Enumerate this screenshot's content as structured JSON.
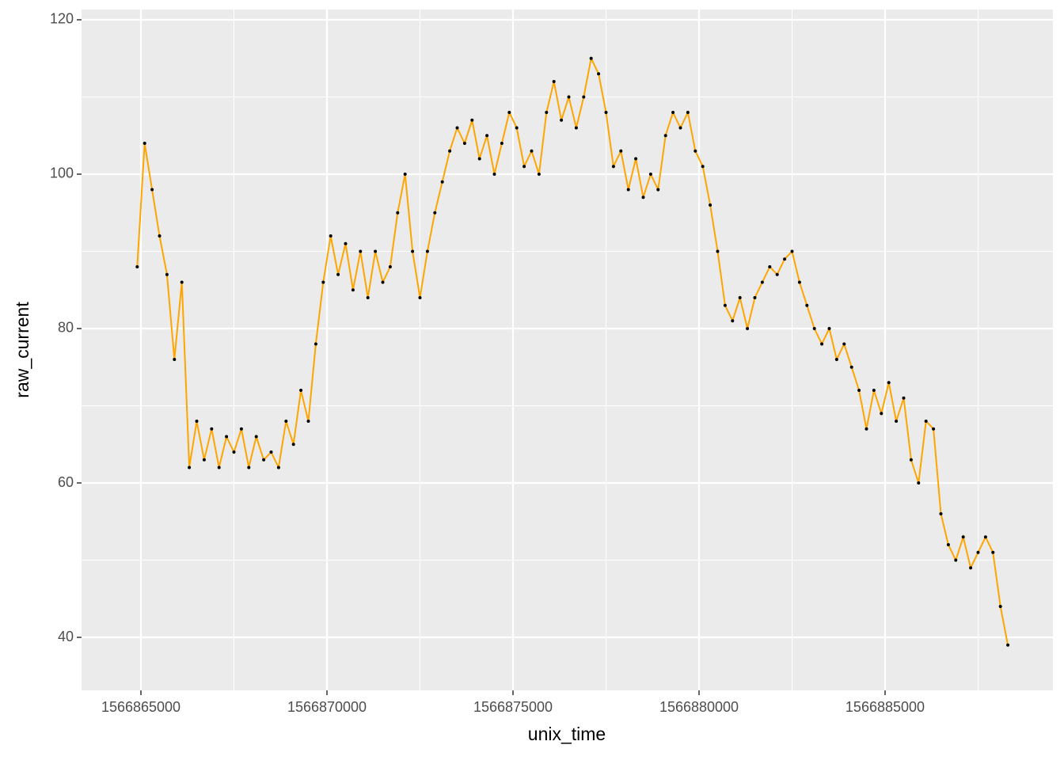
{
  "chart_data": {
    "type": "line",
    "x_label": "unix_time",
    "y_label": "raw_current",
    "x": [
      1566864900,
      1566865100,
      1566865300,
      1566865500,
      1566865700,
      1566865900,
      1566866100,
      1566866300,
      1566866500,
      1566866700,
      1566866900,
      1566867100,
      1566867300,
      1566867500,
      1566867700,
      1566867900,
      1566868100,
      1566868300,
      1566868500,
      1566868700,
      1566868900,
      1566869100,
      1566869300,
      1566869500,
      1566869700,
      1566869900,
      1566870100,
      1566870300,
      1566870500,
      1566870700,
      1566870900,
      1566871100,
      1566871300,
      1566871500,
      1566871700,
      1566871900,
      1566872100,
      1566872300,
      1566872500,
      1566872700,
      1566872900,
      1566873100,
      1566873300,
      1566873500,
      1566873700,
      1566873900,
      1566874100,
      1566874300,
      1566874500,
      1566874700,
      1566874900,
      1566875100,
      1566875300,
      1566875500,
      1566875700,
      1566875900,
      1566876100,
      1566876300,
      1566876500,
      1566876700,
      1566876900,
      1566877100,
      1566877300,
      1566877500,
      1566877700,
      1566877900,
      1566878100,
      1566878300,
      1566878500,
      1566878700,
      1566878900,
      1566879100,
      1566879300,
      1566879500,
      1566879700,
      1566879900,
      1566880100,
      1566880300,
      1566880500,
      1566880700,
      1566880900,
      1566881100,
      1566881300,
      1566881500,
      1566881700,
      1566881900,
      1566882100,
      1566882300,
      1566882500,
      1566882700,
      1566882900,
      1566883100,
      1566883300,
      1566883500,
      1566883700,
      1566883900,
      1566884100,
      1566884300,
      1566884500,
      1566884700,
      1566884900,
      1566885100,
      1566885300,
      1566885500,
      1566885700,
      1566885900,
      1566886100,
      1566886300,
      1566886500,
      1566886700,
      1566886900,
      1566887100,
      1566887300,
      1566887500,
      1566887700,
      1566887900,
      1566888100,
      1566888300
    ],
    "series": [
      {
        "color": "#FFA500",
        "point_color": "#000000",
        "values": [
          88,
          104,
          98,
          92,
          87,
          76,
          86,
          62,
          68,
          63,
          67,
          62,
          66,
          64,
          67,
          62,
          66,
          63,
          64,
          62,
          68,
          65,
          72,
          68,
          78,
          86,
          92,
          87,
          91,
          85,
          90,
          84,
          90,
          86,
          88,
          95,
          100,
          90,
          84,
          90,
          95,
          99,
          103,
          106,
          104,
          107,
          102,
          105,
          100,
          104,
          108,
          106,
          101,
          103,
          100,
          108,
          112,
          107,
          110,
          106,
          110,
          115,
          113,
          108,
          101,
          103,
          98,
          102,
          97,
          100,
          98,
          105,
          108,
          106,
          108,
          103,
          101,
          96,
          90,
          83,
          81,
          84,
          80,
          84,
          86,
          88,
          87,
          89,
          90,
          86,
          83,
          80,
          78,
          80,
          76,
          78,
          75,
          72,
          67,
          72,
          69,
          73,
          68,
          71,
          63,
          60,
          68,
          67,
          56,
          52,
          50,
          53,
          49,
          51,
          53,
          51,
          44,
          39
        ]
      }
    ],
    "xlim": [
      1566863404,
      1566889511
    ],
    "ylim": [
      33.13,
      121.33
    ],
    "xticks": [
      1566865000,
      1566870000,
      1566875000,
      1566880000,
      1566885000
    ],
    "yticks": [
      40,
      60,
      80,
      100,
      120
    ],
    "xminor": [
      1566867500,
      1566872500,
      1566877500,
      1566882500,
      1566887500
    ],
    "yminor": [
      50,
      70,
      90,
      110
    ],
    "grid": true
  }
}
